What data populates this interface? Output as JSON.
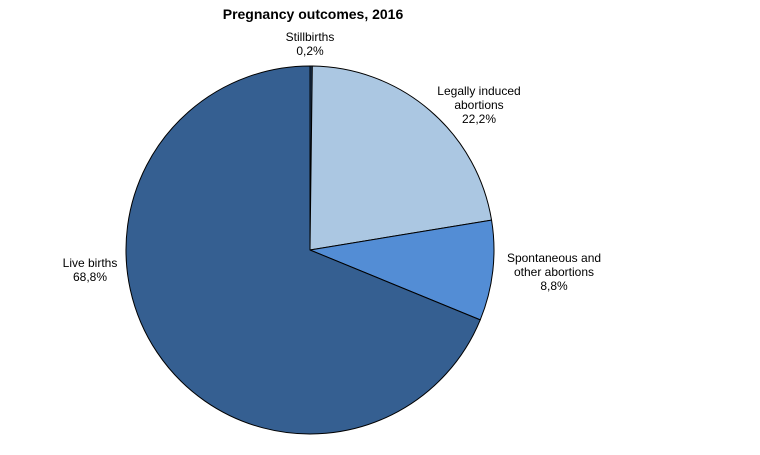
{
  "chart_data": {
    "type": "pie",
    "title": "Pregnancy outcomes, 2016",
    "slices": [
      {
        "name_lines": [
          "Stillbirths"
        ],
        "label": "0,2%",
        "value": 0.2,
        "color": "#1f3b5e"
      },
      {
        "name_lines": [
          "Legally induced",
          "abortions"
        ],
        "label": "22,2%",
        "value": 22.2,
        "color": "#abc7e2"
      },
      {
        "name_lines": [
          "Spontaneous and",
          "other abortions"
        ],
        "label": "8,8%",
        "value": 8.8,
        "color": "#538dd5"
      },
      {
        "name_lines": [
          "Live births"
        ],
        "label": "68,8%",
        "value": 68.8,
        "color": "#355f91"
      }
    ],
    "legend": "none",
    "start_angle_deg": 0,
    "direction": "clockwise"
  }
}
